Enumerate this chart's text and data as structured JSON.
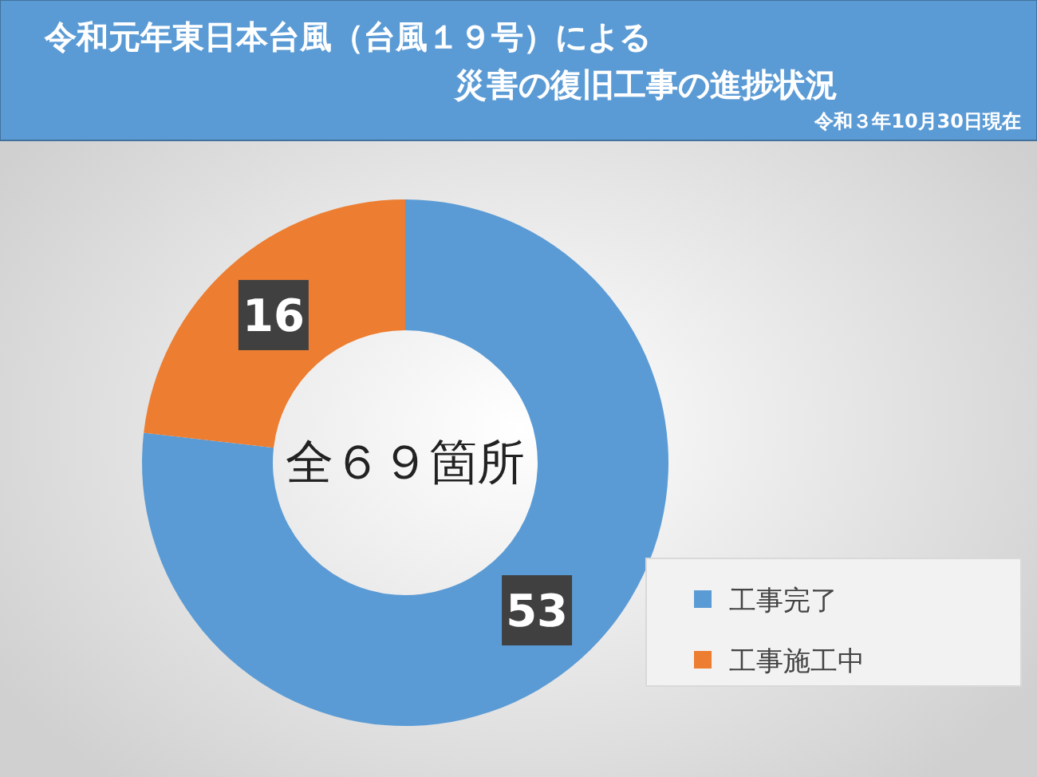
{
  "chart_data": {
    "type": "donut",
    "title": "令和元年東日本台風（台風１９号）による",
    "subtitle": "災害の復旧工事の進捗状況",
    "categories": [
      "工事完了",
      "工事施工中"
    ],
    "values": [
      53,
      16
    ],
    "colors": [
      "#5b9bd5",
      "#ed7d31"
    ],
    "annotations": [
      "令和３年10月30日現在",
      "全６９箇所"
    ],
    "data_labels": true,
    "legend": "bottom right"
  }
}
